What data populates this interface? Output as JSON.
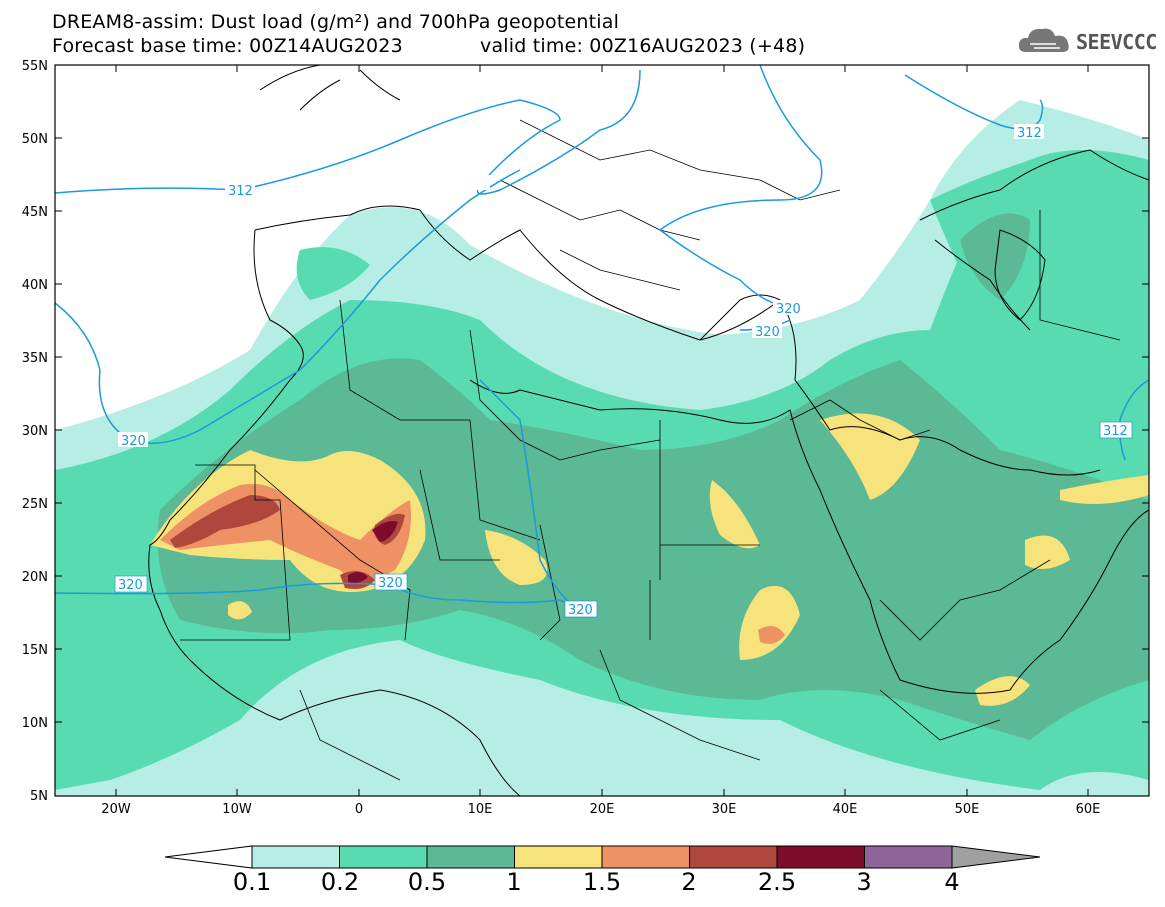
{
  "title": {
    "line1": "DREAM8-assim: Dust load (g/m²) and 700hPa geopotential",
    "line2_base": "Forecast base time: 00Z14AUG2023",
    "line2_valid": "valid time: 00Z16AUG2023 (+48)"
  },
  "logo": {
    "text": "SEEVCCC"
  },
  "axes": {
    "lat_ticks": [
      "55N",
      "50N",
      "45N",
      "40N",
      "35N",
      "30N",
      "25N",
      "20N",
      "15N",
      "10N",
      "5N"
    ],
    "lon_ticks": [
      "20W",
      "10W",
      "0",
      "10E",
      "20E",
      "30E",
      "40E",
      "50E",
      "60E"
    ]
  },
  "contours": {
    "labels": [
      "312",
      "320",
      "320",
      "320",
      "320",
      "320",
      "320",
      "312",
      "312"
    ]
  },
  "colorbar": {
    "levels": [
      "0.1",
      "0.2",
      "0.5",
      "1",
      "1.5",
      "2",
      "2.5",
      "3",
      "4"
    ],
    "colors": [
      "#ffffff",
      "#b6ede4",
      "#59dbb2",
      "#5bb996",
      "#f7e37b",
      "#ee9266",
      "#b0473d",
      "#7d0b2b",
      "#8e6699",
      "#a0a0a0"
    ]
  }
}
